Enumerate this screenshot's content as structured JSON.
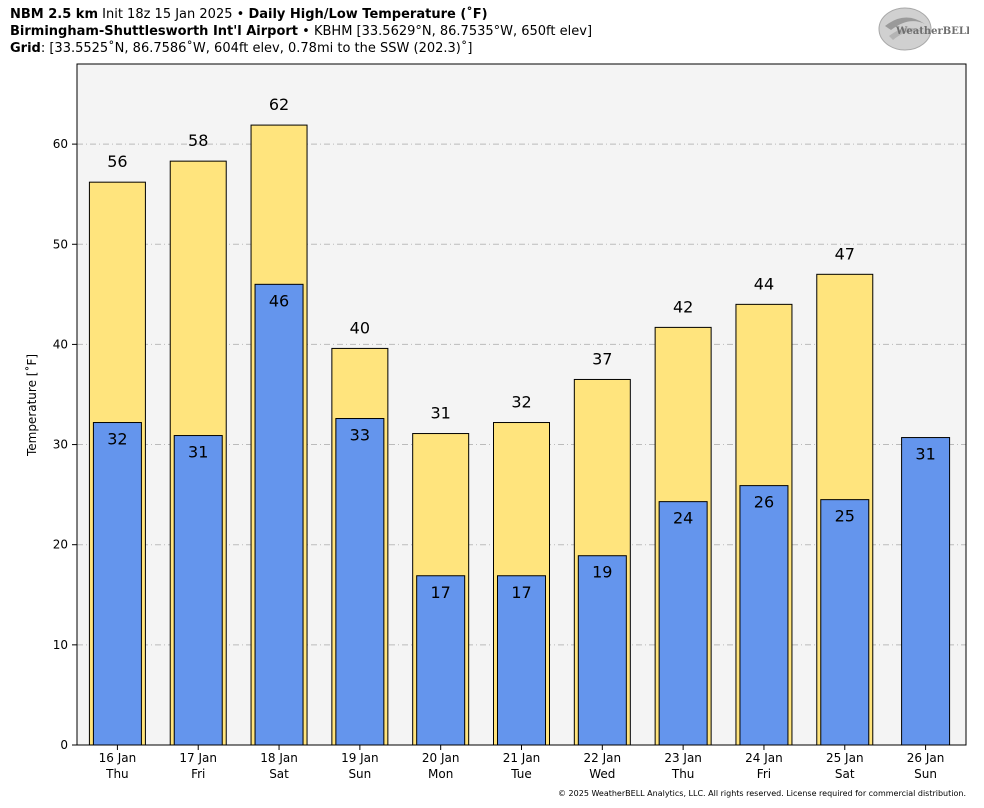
{
  "header": {
    "model": "NBM 2.5 km",
    "init": "Init 18z 15 Jan 2025",
    "sep1": "•",
    "product": "Daily High/Low Temperature (˚F)",
    "station_name": "Birmingham-Shuttlesworth Int'l Airport",
    "sep2": "•",
    "station_info": "KBHM [33.5629°N, 86.7535°W, 650ft elev]",
    "grid_label": "Grid",
    "grid_info": ": [33.5525˚N, 86.7586˚W, 604ft elev, 0.78mi to the SSW (202.3)˚]"
  },
  "logo": {
    "text": "WeatherBELL"
  },
  "copyright": "© 2025 WeatherBELL Analytics, LLC. All rights reserved. License required for commercial distribution.",
  "colors": {
    "high": "#FFE47D",
    "low": "#6495ED",
    "plot_bg": "#F4F4F4",
    "grid": "#BBBBBB"
  },
  "chart_data": {
    "type": "bar",
    "ylabel": "Temperature [˚F]",
    "xlabel": "",
    "ylim": [
      0,
      68
    ],
    "yticks": [
      0,
      10,
      20,
      30,
      40,
      50,
      60
    ],
    "grid": true,
    "categories": [
      {
        "date": "16 Jan",
        "day": "Thu"
      },
      {
        "date": "17 Jan",
        "day": "Fri"
      },
      {
        "date": "18 Jan",
        "day": "Sat"
      },
      {
        "date": "19 Jan",
        "day": "Sun"
      },
      {
        "date": "20 Jan",
        "day": "Mon"
      },
      {
        "date": "21 Jan",
        "day": "Tue"
      },
      {
        "date": "22 Jan",
        "day": "Wed"
      },
      {
        "date": "23 Jan",
        "day": "Thu"
      },
      {
        "date": "24 Jan",
        "day": "Fri"
      },
      {
        "date": "25 Jan",
        "day": "Sat"
      },
      {
        "date": "26 Jan",
        "day": "Sun"
      }
    ],
    "series": [
      {
        "values": [
          56.2,
          58.3,
          61.9,
          39.6,
          31.1,
          32.2,
          36.5,
          41.7,
          44.0,
          47.0,
          null
        ],
        "labels": [
          "56",
          "58",
          "62",
          "40",
          "31",
          "32",
          "37",
          "42",
          "44",
          "47",
          ""
        ]
      },
      {
        "values": [
          32.2,
          30.9,
          46.0,
          32.6,
          16.9,
          16.9,
          18.9,
          24.3,
          25.9,
          24.5,
          30.7
        ],
        "labels": [
          "32",
          "31",
          "46",
          "33",
          "17",
          "17",
          "19",
          "24",
          "26",
          "25",
          "31"
        ]
      }
    ]
  }
}
